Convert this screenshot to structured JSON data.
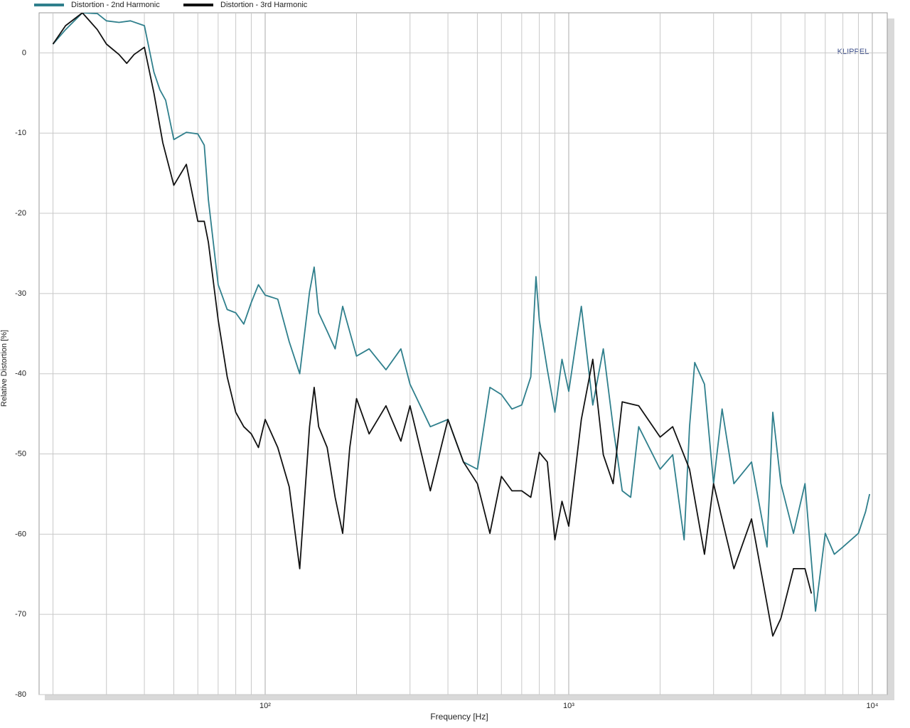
{
  "chart_data": {
    "type": "line",
    "xlabel": "Frequency  [Hz]",
    "ylabel": "Relative Distortion  [%]",
    "annotation": "KLIPPEL",
    "xscale": "log",
    "grid": true,
    "legend": "top-left",
    "xlim": [
      18,
      11200
    ],
    "ylim": [
      -80,
      5
    ],
    "xticks": [
      {
        "value": 100,
        "label": "10²"
      },
      {
        "value": 1000,
        "label": "10³"
      },
      {
        "value": 10000,
        "label": "10⁴"
      }
    ],
    "xminor": [
      20,
      30,
      40,
      50,
      60,
      70,
      80,
      90,
      200,
      300,
      400,
      500,
      600,
      700,
      800,
      900,
      2000,
      3000,
      4000,
      5000,
      6000,
      7000,
      8000,
      9000
    ],
    "yticks": [
      0,
      -10,
      -20,
      -30,
      -40,
      -50,
      -60,
      -70,
      -80
    ],
    "series": [
      {
        "name": "Distortion - 2nd Harmonic",
        "color": "#2f7f8c",
        "x": [
          20,
          22,
          25,
          28,
          30,
          33,
          36,
          40,
          43,
          45,
          47,
          50,
          55,
          60,
          63,
          65,
          70,
          75,
          80,
          85,
          90,
          95,
          100,
          110,
          120,
          130,
          140,
          145,
          150,
          160,
          170,
          180,
          200,
          220,
          250,
          280,
          300,
          350,
          400,
          450,
          500,
          550,
          600,
          650,
          700,
          750,
          780,
          800,
          850,
          900,
          950,
          1000,
          1100,
          1200,
          1300,
          1400,
          1500,
          1600,
          1700,
          2000,
          2200,
          2400,
          2500,
          2600,
          2800,
          3000,
          3200,
          3500,
          4000,
          4500,
          4700,
          5000,
          5500,
          6000,
          6500,
          7000,
          7500,
          8000,
          9000,
          9500,
          9800
        ],
        "values": [
          1.1,
          2.9,
          5,
          4.9,
          4.0,
          3.8,
          4.0,
          3.4,
          -2.4,
          -4.6,
          -5.9,
          -10.8,
          -9.9,
          -10.1,
          -11.5,
          -18.3,
          -28.9,
          -32.0,
          -32.4,
          -33.8,
          -31.1,
          -28.9,
          -30.2,
          -30.7,
          -36.0,
          -40.0,
          -29.8,
          -26.7,
          -32.4,
          -34.7,
          -36.9,
          -31.6,
          -37.8,
          -36.9,
          -39.5,
          -36.9,
          -41.3,
          -46.6,
          -45.7,
          -51.0,
          -51.9,
          -41.7,
          -42.6,
          -44.4,
          -43.9,
          -40.4,
          -27.9,
          -33.3,
          -39.5,
          -44.8,
          -38.2,
          -42.2,
          -31.6,
          -43.9,
          -36.9,
          -46.6,
          -54.6,
          -55.4,
          -46.6,
          -51.9,
          -50.1,
          -60.7,
          -46.6,
          -38.6,
          -41.3,
          -53.7,
          -44.4,
          -53.7,
          -51.0,
          -61.6,
          -44.8,
          -53.7,
          -59.9,
          -53.7,
          -69.6,
          -59.9,
          -62.5,
          -61.6,
          -59.9,
          -57.2,
          -55.0
        ]
      },
      {
        "name": "Distortion - 3rd Harmonic",
        "color": "#111111",
        "x": [
          20,
          22,
          25,
          28,
          30,
          33,
          35,
          37,
          40,
          43,
          46,
          50,
          55,
          60,
          63,
          65,
          70,
          75,
          80,
          85,
          90,
          95,
          100,
          110,
          120,
          130,
          140,
          145,
          150,
          160,
          170,
          180,
          190,
          200,
          220,
          250,
          280,
          300,
          350,
          400,
          450,
          500,
          550,
          600,
          650,
          700,
          750,
          800,
          850,
          900,
          950,
          1000,
          1100,
          1200,
          1300,
          1400,
          1500,
          1700,
          2000,
          2200,
          2500,
          2800,
          3000,
          3500,
          4000,
          4500,
          4700,
          5000,
          5500,
          6000,
          6300
        ],
        "values": [
          1.1,
          3.4,
          5,
          2.9,
          1.1,
          -0.2,
          -1.3,
          -0.2,
          0.7,
          -5.0,
          -11.2,
          -16.5,
          -13.9,
          -21.0,
          -21.0,
          -23.6,
          -33.3,
          -40.4,
          -44.8,
          -46.6,
          -47.5,
          -49.2,
          -45.7,
          -49.2,
          -54.1,
          -64.3,
          -46.6,
          -41.7,
          -46.6,
          -49.2,
          -55.4,
          -59.9,
          -49.2,
          -43.1,
          -47.5,
          -44.0,
          -48.4,
          -44.0,
          -54.6,
          -45.7,
          -51.0,
          -53.7,
          -59.9,
          -52.8,
          -54.6,
          -54.6,
          -55.4,
          -49.8,
          -51.0,
          -60.7,
          -55.9,
          -59.0,
          -45.7,
          -38.2,
          -50.1,
          -53.7,
          -43.5,
          -44.0,
          -47.9,
          -46.6,
          -51.9,
          -62.5,
          -53.7,
          -64.3,
          -58.1,
          -68.7,
          -72.7,
          -70.5,
          -64.3,
          -64.3,
          -67.4
        ]
      }
    ]
  }
}
